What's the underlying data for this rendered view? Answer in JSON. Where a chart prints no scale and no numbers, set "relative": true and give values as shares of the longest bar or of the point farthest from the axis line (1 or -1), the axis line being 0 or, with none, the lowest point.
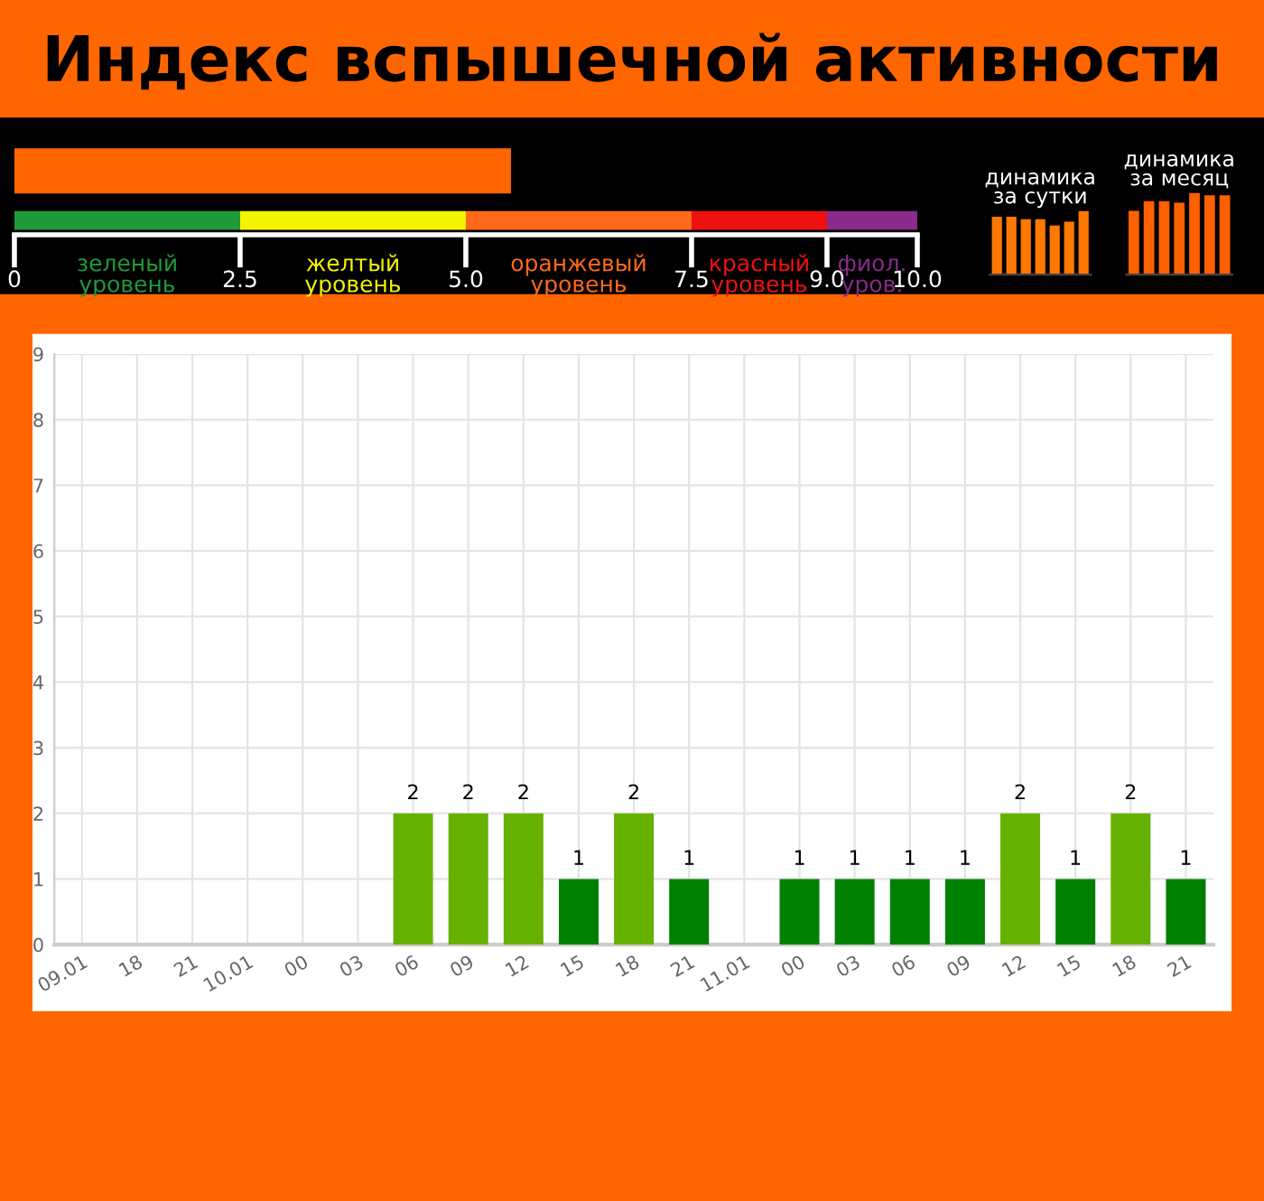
{
  "chart_data": [
    {
      "type": "bar",
      "orientation": "horizontal",
      "title": "Индекс вспышечной активности",
      "categories": [
        null
      ],
      "values": [
        5.5
      ],
      "color": "#ff6600",
      "xlim": [
        0,
        10
      ],
      "xticks": [
        0,
        2.5,
        {
          "value": 5,
          "label": "5.0"
        },
        7.5,
        {
          "value": 9,
          "label": "9.0"
        },
        {
          "value": 10,
          "label": "10.0"
        }
      ],
      "annotations": [
        "зеленый\nуровень",
        "желтый\nуровень",
        "оранжевый\nуровень",
        "красный\nуровень",
        "фиол.\nуров."
      ]
    },
    {
      "type": "bar",
      "title": "динамика\nза сутки",
      "relative": true,
      "categories": [
        null,
        null,
        null,
        null,
        null,
        null,
        null
      ],
      "values": [
        0.91,
        0.91,
        0.87,
        0.87,
        0.77,
        0.83,
        1
      ],
      "color": "#ff7800"
    },
    {
      "type": "bar",
      "title": "динамика\nза месяц",
      "relative": true,
      "categories": [
        null,
        null,
        null,
        null,
        null,
        null,
        null
      ],
      "values": [
        0.78,
        0.9,
        0.9,
        0.88,
        1,
        0.97,
        0.97
      ],
      "color": "#ff6000"
    },
    {
      "type": "bar",
      "categories": [
        "09.01",
        "18",
        "21",
        "10.01",
        "00",
        "03",
        "06",
        "09",
        "12",
        "15",
        "18",
        "21",
        "11.01",
        "00",
        "03",
        "06",
        "09",
        "12",
        "15",
        "18",
        "21"
      ],
      "values": [
        0,
        0,
        0,
        0,
        0,
        0,
        2,
        2,
        2,
        1,
        2,
        1,
        0,
        1,
        1,
        1,
        1,
        2,
        1,
        2,
        1
      ],
      "colors": [
        "#008000",
        "#008000",
        "#008000",
        "#008000",
        "#008000",
        "#008000",
        "#66b000",
        "#66b000",
        "#66b000",
        "#008000",
        "#66b000",
        "#008000",
        "#008000",
        "#008000",
        "#008000",
        "#008000",
        "#008000",
        "#66b000",
        "#008000",
        "#66b000",
        "#008000"
      ],
      "value_labels": [
        null,
        null,
        null,
        null,
        null,
        null,
        "2",
        "2",
        "2",
        "1",
        "2",
        "1",
        null,
        "1",
        "1",
        "1",
        "1",
        "2",
        "1",
        "2",
        "1"
      ],
      "ylim": [
        0,
        9
      ],
      "yticks": [
        0,
        1,
        2,
        3,
        4,
        5,
        6,
        7,
        8,
        9
      ],
      "grid": true
    }
  ]
}
